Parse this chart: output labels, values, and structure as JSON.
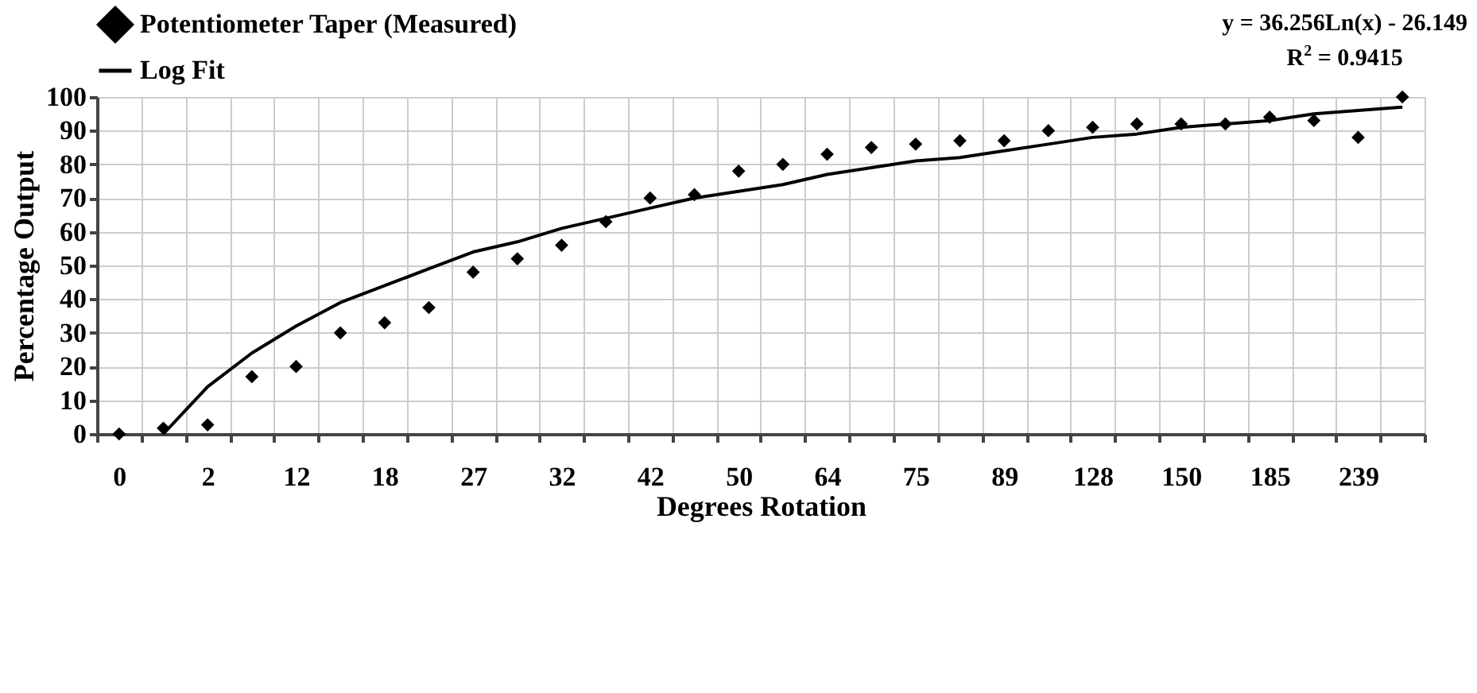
{
  "chart_data": {
    "type": "scatter",
    "xlabel": "Degrees Rotation",
    "ylabel": "Percentage Output",
    "categories": [
      "0",
      null,
      "2",
      null,
      "12",
      null,
      "18",
      null,
      "27",
      null,
      "32",
      null,
      "42",
      null,
      "50",
      null,
      "64",
      null,
      "75",
      null,
      "89",
      null,
      "128",
      null,
      "150",
      null,
      "185",
      null,
      "239",
      null
    ],
    "ylim": [
      0,
      100
    ],
    "yticks": [
      0,
      10,
      20,
      30,
      40,
      50,
      60,
      70,
      80,
      90,
      100
    ],
    "grid": true,
    "legend": "top",
    "series": [
      {
        "name": "Potentiometer Taper (Measured)",
        "marker": "diamond",
        "color": "#000000",
        "values": [
          0,
          1.7,
          2.7,
          17,
          20,
          30,
          33,
          37.5,
          48,
          52,
          56,
          63,
          70,
          71,
          78,
          80,
          83,
          85,
          86,
          87,
          87,
          90,
          91,
          92,
          92,
          92,
          94,
          93,
          88,
          100
        ]
      },
      {
        "name": "Log Fit",
        "type": "line",
        "color": "#000000",
        "values": [
          null,
          0,
          14,
          24,
          32,
          39,
          44,
          49,
          54,
          57,
          61,
          64,
          67,
          70,
          72,
          74,
          77,
          79,
          81,
          82,
          84,
          86,
          88,
          89,
          91,
          92,
          93,
          95,
          96,
          97
        ]
      }
    ],
    "annotations": [
      "y = 36.256Ln(x) - 26.149",
      "R$^{2}$ = 0.9415"
    ]
  }
}
